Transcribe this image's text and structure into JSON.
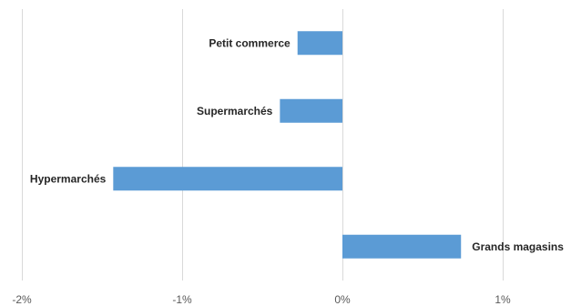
{
  "chart_data": {
    "type": "bar",
    "orientation": "horizontal",
    "categories": [
      "Petit commerce",
      "Supermarchés",
      "Hypermarchés",
      "Grands magasins"
    ],
    "values": [
      -0.28,
      -0.39,
      -1.43,
      0.74
    ],
    "unit": "%",
    "xlim": [
      -2,
      1
    ],
    "xticks": [
      -2,
      -1,
      0,
      1
    ],
    "xtick_labels": [
      "-2%",
      "-1%",
      "0%",
      "1%"
    ],
    "title": "",
    "xlabel": "",
    "ylabel": "",
    "grid": "vertical",
    "legend": "none",
    "bar_color": "#5b9bd5"
  }
}
